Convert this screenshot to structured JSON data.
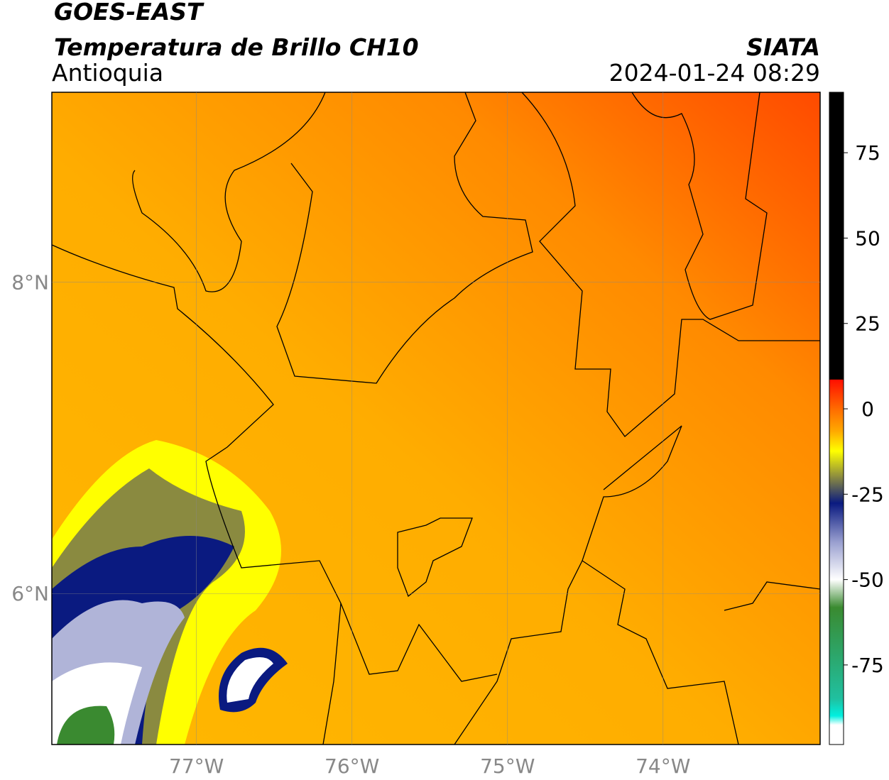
{
  "header": {
    "title": "GOES-EAST",
    "subtitle": "Temperatura de Brillo CH10",
    "region": "Antioquia",
    "source": "SIATA",
    "datetime": "2024-01-24 08:29"
  },
  "map": {
    "lon_lim": [
      -77.93,
      -72.99
    ],
    "lat_lim": [
      5.03,
      9.22
    ],
    "lon_ticks": [
      {
        "value": -77,
        "label": "77°W"
      },
      {
        "value": -76,
        "label": "76°W"
      },
      {
        "value": -75,
        "label": "75°W"
      },
      {
        "value": -74,
        "label": "74°W"
      }
    ],
    "lat_ticks": [
      {
        "value": 8,
        "label": "8°N"
      },
      {
        "value": 6,
        "label": "6°N"
      }
    ]
  },
  "colorbar": {
    "lim": [
      -98.3,
      92.7
    ],
    "ticks": [
      75,
      50,
      25,
      0,
      -25,
      -50,
      -75
    ]
  }
}
